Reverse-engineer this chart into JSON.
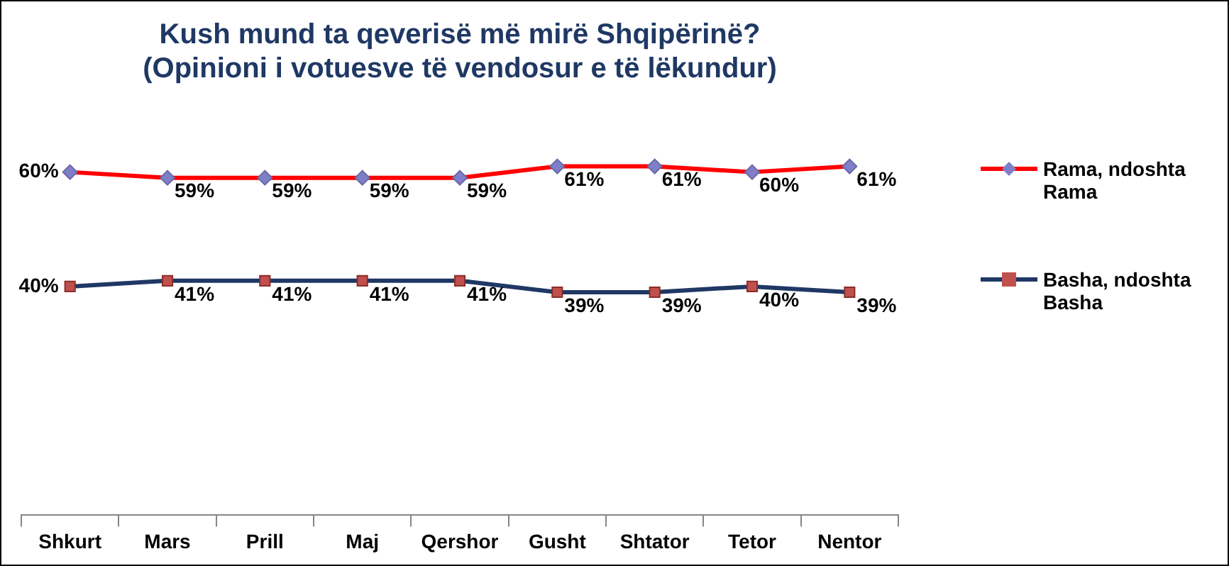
{
  "chart_data": {
    "type": "line",
    "title": "Kush mund ta qeverisë më mirë Shqipërinë?\n(Opinioni i votuesve të vendosur e të lëkundur)",
    "categories": [
      "Shkurt",
      "Mars",
      "Prill",
      "Maj",
      "Qershor",
      "Gusht",
      "Shtator",
      "Tetor",
      "Nentor"
    ],
    "series": [
      {
        "name": "Rama, ndoshta Rama",
        "color": "#ff0000",
        "marker": "diamond",
        "values": [
          60,
          59,
          59,
          59,
          59,
          61,
          61,
          60,
          61
        ],
        "value_labels": [
          "60%",
          "59%",
          "59%",
          "59%",
          "59%",
          "61%",
          "61%",
          "60%",
          "61%"
        ]
      },
      {
        "name": "Basha, ndoshta Basha",
        "color": "#1f3864",
        "marker": "square",
        "values": [
          40,
          41,
          41,
          41,
          41,
          39,
          39,
          40,
          39
        ],
        "value_labels": [
          "40%",
          "41%",
          "41%",
          "41%",
          "41%",
          "39%",
          "39%",
          "40%",
          "39%"
        ]
      }
    ],
    "tick_labels": "x",
    "grid": false,
    "legend": "right"
  }
}
